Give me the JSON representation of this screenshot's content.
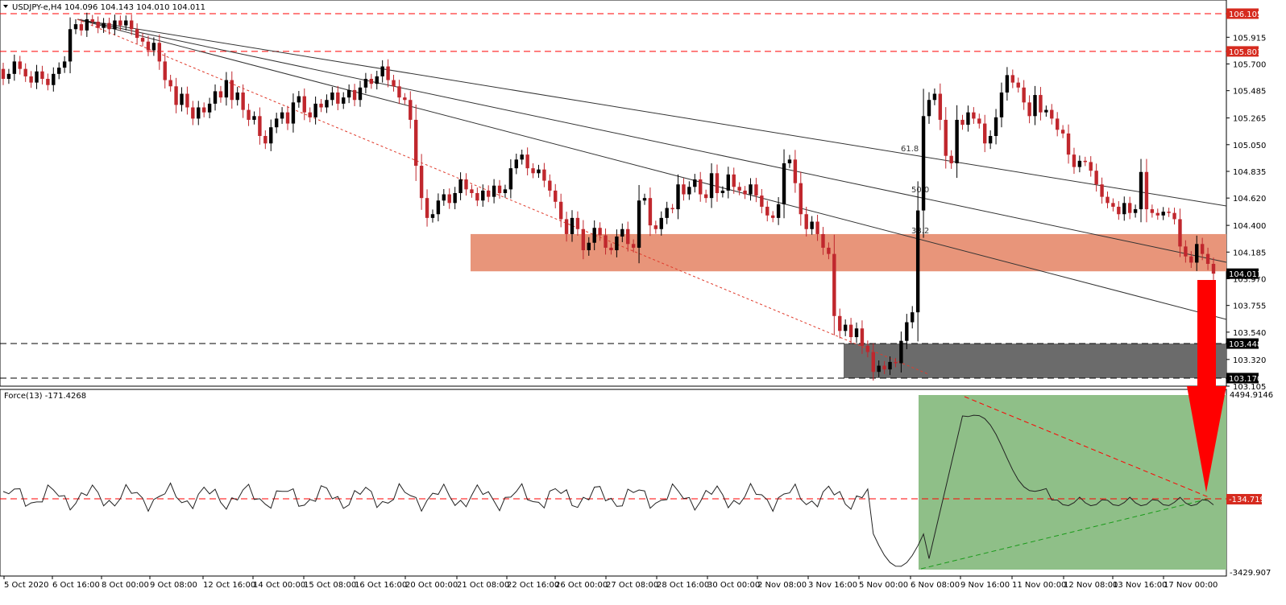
{
  "chart_data": [
    {
      "type": "candlestick",
      "title": "USDJPY-e,H4  104.096 104.143 104.010 104.011",
      "ylim": [
        103.105,
        106.215
      ],
      "price_ticks": [
        "105.915",
        "105.700",
        "105.485",
        "105.265",
        "105.050",
        "104.835",
        "104.620",
        "104.400",
        "104.185",
        "103.970",
        "103.755",
        "103.540",
        "103.320",
        "103.105"
      ],
      "marked_levels": [
        {
          "value": 106.105,
          "label": "106.105",
          "style": "dashed",
          "color": "#ff0000"
        },
        {
          "value": 105.801,
          "label": "105.801",
          "style": "dashed",
          "color": "#ff0000"
        },
        {
          "value": 103.448,
          "label": "103.448",
          "style": "dashed",
          "color": "#000000"
        },
        {
          "value": 103.17,
          "label": "103.170",
          "style": "dashed",
          "color": "#000000"
        }
      ],
      "current_price": "104.011",
      "fib_labels": [
        "61.8",
        "50.0",
        "38.2"
      ],
      "zones": [
        {
          "name": "resistance-zone",
          "y_from": 104.03,
          "y_to": 104.33,
          "color": "#e8957a"
        },
        {
          "name": "support-zone",
          "y_from": 103.17,
          "y_to": 103.448,
          "color": "#6b6b6b"
        }
      ],
      "up_color": "#000000",
      "down_color": "#c0272d",
      "closes": [
        105.58,
        105.62,
        105.72,
        105.66,
        105.6,
        105.55,
        105.64,
        105.58,
        105.53,
        105.62,
        105.67,
        105.72,
        105.98,
        106.02,
        105.97,
        106.06,
        106.04,
        105.99,
        106.03,
        105.98,
        106.05,
        106.01,
        106.05,
        105.98,
        105.91,
        105.88,
        105.81,
        105.87,
        105.72,
        105.57,
        105.52,
        105.37,
        105.46,
        105.35,
        105.26,
        105.35,
        105.31,
        105.38,
        105.48,
        105.43,
        105.57,
        105.41,
        105.47,
        105.33,
        105.25,
        105.28,
        105.12,
        105.06,
        105.19,
        105.26,
        105.31,
        105.22,
        105.39,
        105.44,
        105.31,
        105.27,
        105.38,
        105.35,
        105.41,
        105.47,
        105.38,
        105.43,
        105.49,
        105.41,
        105.51,
        105.58,
        105.54,
        105.6,
        105.68,
        105.57,
        105.52,
        105.43,
        105.41,
        105.25,
        104.88,
        104.62,
        104.46,
        104.49,
        104.6,
        104.65,
        104.58,
        104.66,
        104.77,
        104.69,
        104.66,
        104.6,
        104.68,
        104.63,
        104.72,
        104.66,
        104.69,
        104.86,
        104.93,
        104.97,
        104.86,
        104.82,
        104.85,
        104.76,
        104.68,
        104.59,
        104.45,
        104.33,
        104.46,
        104.37,
        104.2,
        104.26,
        104.38,
        104.32,
        104.22,
        104.2,
        104.31,
        104.37,
        104.25,
        104.22,
        104.6,
        104.62,
        104.4,
        104.37,
        104.46,
        104.54,
        104.53,
        104.73,
        104.65,
        104.71,
        104.77,
        104.65,
        104.62,
        104.82,
        104.66,
        104.68,
        104.81,
        104.71,
        104.68,
        104.65,
        104.73,
        104.64,
        104.55,
        104.48,
        104.46,
        104.57,
        104.9,
        104.93,
        104.74,
        104.49,
        104.37,
        104.43,
        104.33,
        104.22,
        104.17,
        103.67,
        103.55,
        103.6,
        103.5,
        103.57,
        103.43,
        103.38,
        103.22,
        103.27,
        103.24,
        103.3,
        103.29,
        103.47,
        103.62,
        103.7,
        104.52,
        105.28,
        105.41,
        105.46,
        105.25,
        104.96,
        104.9,
        105.25,
        105.21,
        105.31,
        105.26,
        105.22,
        105.06,
        105.12,
        105.27,
        105.47,
        105.61,
        105.55,
        105.51,
        105.39,
        105.28,
        105.45,
        105.31,
        105.33,
        105.26,
        105.17,
        105.14,
        104.97,
        104.87,
        104.92,
        104.91,
        104.84,
        104.73,
        104.63,
        104.58,
        104.55,
        104.49,
        104.58,
        104.5,
        104.53,
        104.83,
        104.53,
        104.5,
        104.48,
        104.51,
        104.5,
        104.45,
        104.23,
        104.15,
        104.1,
        104.25,
        104.17,
        104.09,
        104.011
      ]
    },
    {
      "type": "line",
      "title": "Force(13) -171.4268",
      "ylim": [
        -3429.907,
        4494.9146
      ],
      "tick_labels": [
        "4494.9146",
        "-3429.907"
      ],
      "level": {
        "value": -134.7196,
        "label": "-134.7196",
        "color": "#ff0000"
      },
      "zone_color": "#8fbf88",
      "upper_trend_color": "#ff0000",
      "lower_trend_color": "#1a9a1a"
    }
  ],
  "x_axis_labels": [
    "5 Oct 2020",
    "6 Oct 16:00",
    "8 Oct 00:00",
    "9 Oct 08:00",
    "12 Oct 16:00",
    "14 Oct 00:00",
    "15 Oct 08:00",
    "16 Oct 16:00",
    "20 Oct 00:00",
    "21 Oct 08:00",
    "22 Oct 16:00",
    "26 Oct 00:00",
    "27 Oct 08:00",
    "28 Oct 16:00",
    "30 Oct 00:00",
    "2 Nov 08:00",
    "3 Nov 16:00",
    "5 Nov 00:00",
    "6 Nov 08:00",
    "9 Nov 16:00",
    "11 Nov 00:00",
    "12 Nov 08:00",
    "13 Nov 16:00",
    "17 Nov 00:00"
  ],
  "arrow_color": "#ff0000"
}
